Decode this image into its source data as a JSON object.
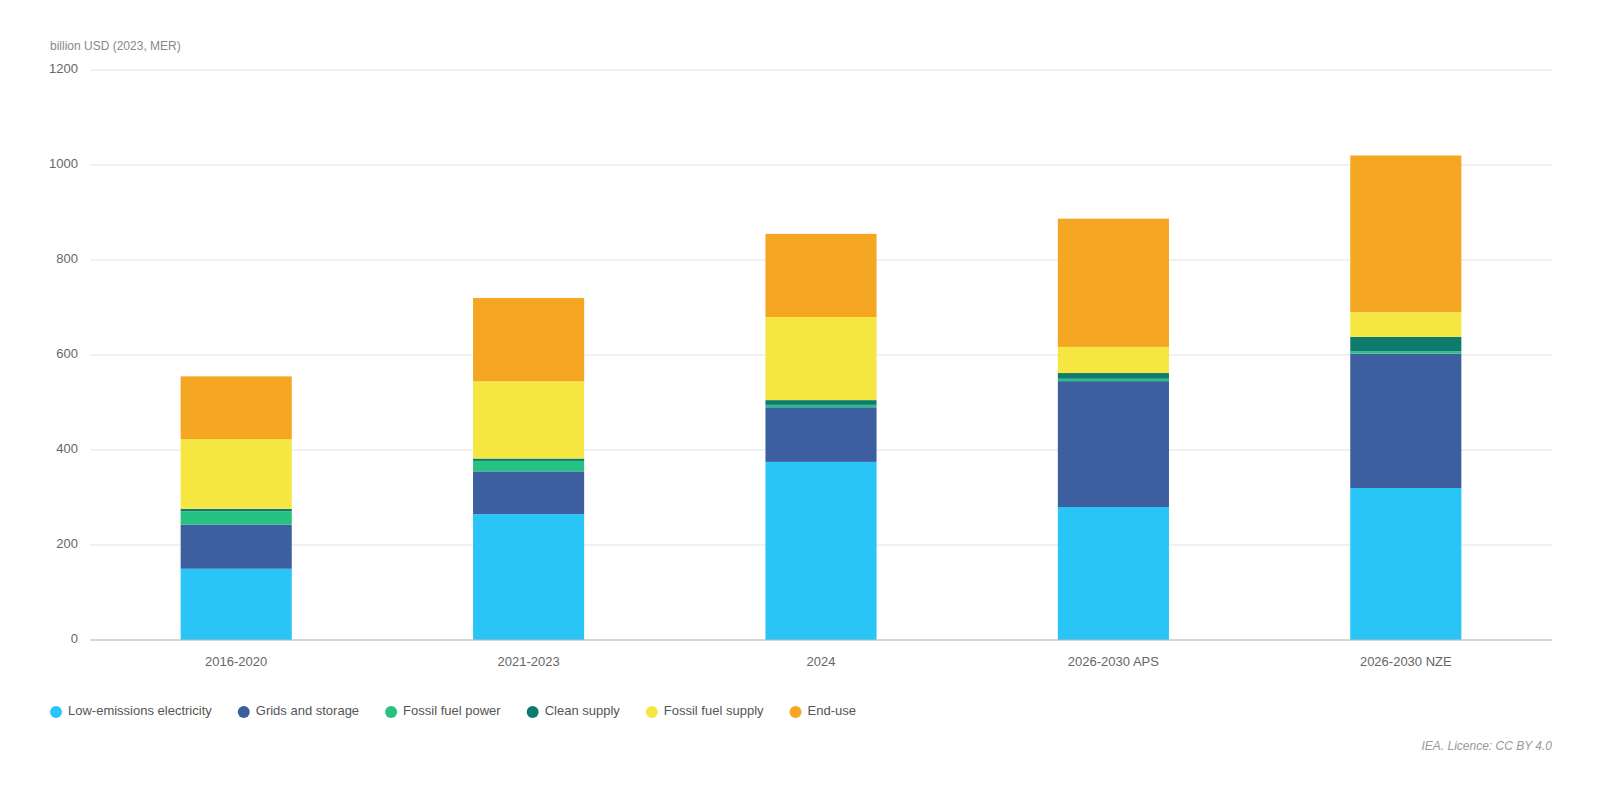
{
  "chart_data": {
    "type": "bar",
    "stacked": true,
    "categories": [
      "2016-2020",
      "2021-2023",
      "2024",
      "2026-2030 APS",
      "2026-2030 NZE"
    ],
    "series": [
      {
        "name": "Low-emissions electricity",
        "color": "#29C5F6",
        "values": [
          150,
          265,
          375,
          280,
          320
        ]
      },
      {
        "name": "Grids and storage",
        "color": "#3D5FA0",
        "values": [
          93,
          90,
          115,
          265,
          283
        ]
      },
      {
        "name": "Fossil fuel power",
        "color": "#26C281",
        "values": [
          28,
          22,
          5,
          5,
          5
        ]
      },
      {
        "name": "Clean supply",
        "color": "#0D7B6E",
        "values": [
          5,
          5,
          10,
          12,
          30
        ]
      },
      {
        "name": "Fossil fuel supply",
        "color": "#F5E642",
        "values": [
          147,
          163,
          175,
          55,
          52
        ]
      },
      {
        "name": "End-use",
        "color": "#F5A623",
        "values": [
          132,
          175,
          175,
          270,
          330
        ]
      }
    ],
    "ylabel": "billion USD (2023, MER)",
    "ylim": [
      0,
      1200
    ],
    "yticks": [
      0,
      200,
      400,
      600,
      800,
      1000,
      1200
    ],
    "grid": true,
    "legend": "bottom",
    "annotations": [
      "IEA. Licence: CC BY 4.0"
    ]
  }
}
